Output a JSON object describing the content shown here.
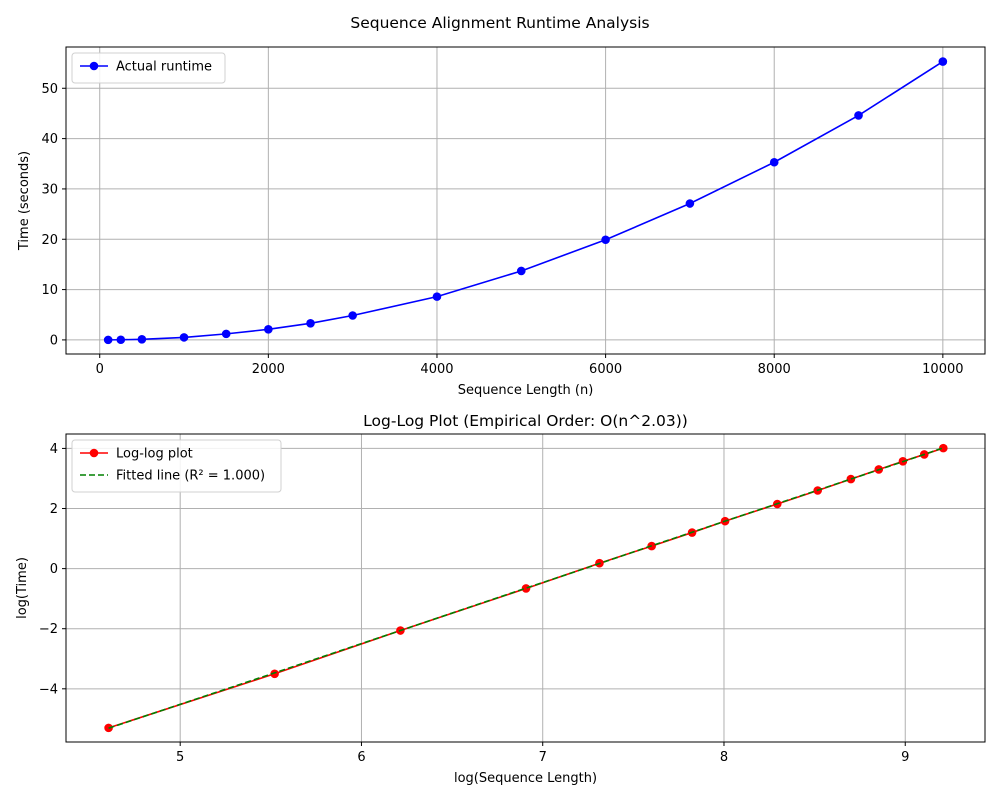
{
  "figure": {
    "suptitle": "Sequence Alignment Runtime Analysis"
  },
  "colors": {
    "runtime": "#0000ff",
    "loglog": "#ff0000",
    "fit": "#008000",
    "grid": "#b0b0b0",
    "axes": "#000000"
  },
  "chart_data": [
    {
      "type": "line",
      "title": "",
      "xlabel": "Sequence Length (n)",
      "ylabel": "Time (seconds)",
      "xlim": [
        -400,
        10500
      ],
      "ylim": [
        -2.8,
        58.2
      ],
      "xticks": [
        0,
        2000,
        4000,
        6000,
        8000,
        10000
      ],
      "yticks": [
        0,
        10,
        20,
        30,
        40,
        50
      ],
      "xtick_labels": [
        "0",
        "2000",
        "4000",
        "6000",
        "8000",
        "10000"
      ],
      "ytick_labels": [
        "0",
        "10",
        "20",
        "30",
        "40",
        "50"
      ],
      "grid": true,
      "legend_position": "top-left",
      "x": [
        100,
        250,
        500,
        1000,
        1500,
        2000,
        2500,
        3000,
        4000,
        5000,
        6000,
        7000,
        8000,
        9000,
        10000
      ],
      "series": [
        {
          "name": "Actual runtime",
          "style": "solid-with-markers",
          "color": "#0000ff",
          "values": [
            0.005,
            0.03,
            0.12,
            0.5,
            1.2,
            2.1,
            3.3,
            4.85,
            8.6,
            13.7,
            19.9,
            27.1,
            35.3,
            44.6,
            55.3
          ]
        }
      ]
    },
    {
      "type": "line",
      "title": "Log-Log Plot (Empirical Order: O(n^2.03))",
      "xlabel": "log(Sequence Length)",
      "ylabel": "log(Time)",
      "xlim": [
        4.37,
        9.44
      ],
      "ylim": [
        -5.77,
        4.48
      ],
      "xticks": [
        5,
        6,
        7,
        8,
        9
      ],
      "yticks": [
        -4,
        -2,
        0,
        2,
        4
      ],
      "xtick_labels": [
        "5",
        "6",
        "7",
        "8",
        "9"
      ],
      "ytick_labels": [
        "−4",
        "−2",
        "0",
        "2",
        "4"
      ],
      "grid": true,
      "legend_position": "top-left",
      "x": [
        4.605,
        5.521,
        6.215,
        6.908,
        7.313,
        7.601,
        7.824,
        8.006,
        8.294,
        8.517,
        8.7,
        8.854,
        8.987,
        9.105,
        9.21
      ],
      "series": [
        {
          "name": "Log-log plot",
          "style": "solid-with-markers",
          "color": "#ff0000",
          "values": [
            -5.3,
            -3.5,
            -2.06,
            -0.66,
            0.18,
            0.75,
            1.2,
            1.58,
            2.15,
            2.6,
            2.98,
            3.3,
            3.57,
            3.8,
            4.01
          ]
        },
        {
          "name": "Fitted line (R² = 1.000)",
          "style": "dashed",
          "color": "#008000",
          "values": [
            -5.31,
            -3.47,
            -2.06,
            -0.65,
            0.17,
            0.76,
            1.21,
            1.58,
            2.16,
            2.61,
            2.98,
            3.29,
            3.56,
            3.8,
            4.02
          ]
        }
      ]
    }
  ]
}
